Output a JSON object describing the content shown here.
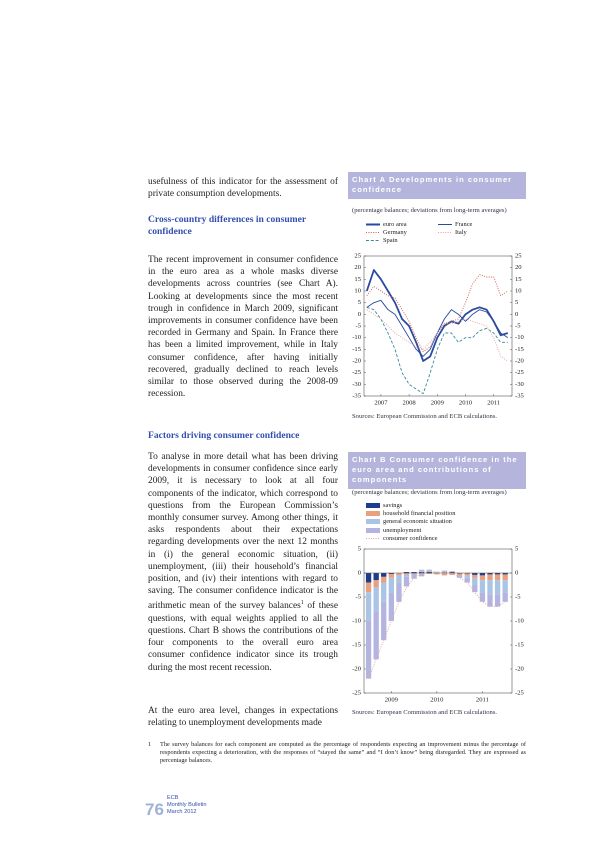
{
  "text": {
    "para1": "usefulness of this indicator for the assessment of private consumption developments.",
    "heading1": "Cross-country differences in consumer confidence",
    "para2": "The recent improvement in consumer confidence in the euro area as a whole masks diverse developments across countries (see Chart A). Looking at developments since the most recent trough in confidence in March 2009, significant improvements in consumer confidence have been recorded in Germany and Spain. In France there has been a limited improvement, while in Italy consumer confidence, after having initially recovered, gradually declined to reach levels similar to those observed during the 2008-09 recession.",
    "heading2": "Factors driving consumer confidence",
    "para3a": "To analyse in more detail what has been driving developments in consumer confidence since early 2009, it is necessary to look at all four components of the indicator, which correspond to questions from the European Commission’s monthly consumer survey. Among other things, it asks respondents about their expectations regarding developments over the next 12 months in (i) the general economic situation, (ii) unemployment, (iii) their household’s financial position, and (iv) their intentions with regard to saving. The consumer confidence indicator is the arithmetic mean of the survey balances",
    "para3_note": "1",
    "para3b": " of these questions, with equal weights applied to all the questions. Chart B shows the contributions of the four components to the overall euro area consumer confidence indicator since its trough during the most recent recession.",
    "para4": "At the euro area level, changes in expectations relating to unemployment developments made",
    "footnote_number": "1",
    "footnote": "The survey balances for each component are computed as the percentage of respondents expecting an improvement minus the percentage of respondents expecting a deterioration, with the responses of “stayed the same” and “I don’t know” being disregarded. They are expressed as percentage balances.",
    "footer_page": "76",
    "footer_line1": "ECB",
    "footer_line2": "Monthly Bulletin",
    "footer_line3": "March 2012"
  },
  "chart_data": [
    {
      "type": "line",
      "title": "Chart A Developments in consumer confidence",
      "subtitle": "(percentage balances; deviations from long-term averages)",
      "source": "Sources: European Commission and ECB calculations.",
      "x": [
        2007.0,
        2007.25,
        2007.5,
        2007.75,
        2008.0,
        2008.25,
        2008.5,
        2008.75,
        2009.0,
        2009.25,
        2009.5,
        2009.75,
        2010.0,
        2010.25,
        2010.5,
        2010.75,
        2011.0,
        2011.25,
        2011.5,
        2011.75,
        2012.0
      ],
      "xlim": [
        2006.9,
        2012.15
      ],
      "xticks": [
        {
          "value": 2007.5,
          "label": "2007"
        },
        {
          "value": 2008.5,
          "label": "2008"
        },
        {
          "value": 2009.5,
          "label": "2009"
        },
        {
          "value": 2010.5,
          "label": "2010"
        },
        {
          "value": 2011.5,
          "label": "2011"
        }
      ],
      "ylim": [
        -35,
        25
      ],
      "yticks": [
        -35,
        -30,
        -25,
        -20,
        -15,
        -10,
        -5,
        0,
        5,
        10,
        15,
        20,
        25
      ],
      "series": [
        {
          "name": "euro area",
          "color": "#2a4aa0",
          "style": "thick",
          "values": [
            10,
            19,
            15,
            10,
            5,
            -2,
            -5,
            -12,
            -20,
            -18,
            -10,
            -5,
            -3,
            -4,
            0,
            2,
            3,
            2,
            -3,
            -9,
            -8
          ]
        },
        {
          "name": "Germany",
          "color": "#d05a4a",
          "style": "dotted",
          "values": [
            8,
            12,
            10,
            8,
            7,
            2,
            -3,
            -10,
            -16,
            -14,
            -8,
            -4,
            -3,
            -2,
            5,
            13,
            17,
            16,
            16,
            8,
            10
          ]
        },
        {
          "name": "Spain",
          "color": "#3a8a9a",
          "style": "dashed",
          "values": [
            3,
            2,
            -2,
            -8,
            -15,
            -25,
            -30,
            -32,
            -34,
            -25,
            -15,
            -8,
            -8,
            -12,
            -10,
            -10,
            -7,
            -6,
            -8,
            -12,
            -12
          ]
        },
        {
          "name": "France",
          "color": "#2a4aa0",
          "style": "solid",
          "values": [
            3,
            5,
            6,
            2,
            0,
            -5,
            -10,
            -15,
            -18,
            -15,
            -8,
            -2,
            2,
            0,
            -3,
            0,
            2,
            1,
            -3,
            -8,
            -10
          ]
        },
        {
          "name": "Italy",
          "color": "#e6a0a0",
          "style": "dotted",
          "values": [
            2,
            0,
            -2,
            -5,
            -8,
            -10,
            -12,
            -14,
            -15,
            -12,
            -8,
            -4,
            -4,
            -3,
            -2,
            -3,
            -4,
            -5,
            -10,
            -18,
            -20
          ]
        }
      ]
    },
    {
      "type": "bar",
      "stacked": true,
      "title": "Chart B Consumer confidence in the euro area and contributions of components",
      "subtitle": "(percentage balances; deviations from long-term averages)",
      "source": "Sources: European Commission and ECB calculations.",
      "x": [
        2009.0,
        2009.167,
        2009.333,
        2009.5,
        2009.667,
        2009.833,
        2010.0,
        2010.167,
        2010.333,
        2010.5,
        2010.667,
        2010.833,
        2011.0,
        2011.167,
        2011.333,
        2011.5,
        2011.667,
        2011.833,
        2012.0
      ],
      "xlim": [
        2008.9,
        2012.15
      ],
      "xticks": [
        {
          "value": 2009.5,
          "label": "2009"
        },
        {
          "value": 2010.5,
          "label": "2010"
        },
        {
          "value": 2011.5,
          "label": "2011"
        }
      ],
      "ylim": [
        -25,
        5
      ],
      "yticks": [
        -25,
        -20,
        -15,
        -10,
        -5,
        0,
        5
      ],
      "series": [
        {
          "name": "savings",
          "color": "#1f3c8c",
          "values": [
            -2,
            -1.5,
            -0.8,
            -0.2,
            0,
            0.2,
            0.2,
            0.2,
            0.2,
            0,
            0.1,
            0.2,
            -0.1,
            -0.1,
            -0.4,
            -0.5,
            -0.3,
            -0.3,
            -0.3
          ]
        },
        {
          "name": "household financial position",
          "color": "#e8a080",
          "values": [
            -2,
            -1.5,
            -1.2,
            -0.8,
            -0.5,
            -0.3,
            -0.2,
            -0.2,
            -0.2,
            -0.3,
            -0.5,
            -0.4,
            -0.4,
            -0.4,
            -0.6,
            -1,
            -1.2,
            -1.2,
            -1.2
          ]
        },
        {
          "name": "general economic situation",
          "color": "#a9c4e4",
          "values": [
            -6,
            -5,
            -4,
            -3,
            -1.5,
            -0.5,
            0,
            0.5,
            0.5,
            0.3,
            0.2,
            0.2,
            0,
            -0.5,
            -1.5,
            -2.5,
            -3,
            -3,
            -2.5
          ]
        },
        {
          "name": "unemployment",
          "color": "#b4b4e0",
          "values": [
            -12,
            -10,
            -8,
            -6,
            -4,
            -2,
            -1,
            -0.5,
            0,
            0,
            0.2,
            0,
            -0.5,
            -1,
            -1.5,
            -2,
            -2.5,
            -2.5,
            -2
          ]
        },
        {
          "name": "consumer confidence",
          "color": "#e6a0a0",
          "type": "line",
          "values": [
            -22,
            -18,
            -14,
            -10,
            -6,
            -3,
            -1,
            0,
            0.5,
            0,
            0,
            0,
            -1,
            -2,
            -4,
            -6,
            -7,
            -7,
            -6
          ]
        }
      ]
    }
  ]
}
